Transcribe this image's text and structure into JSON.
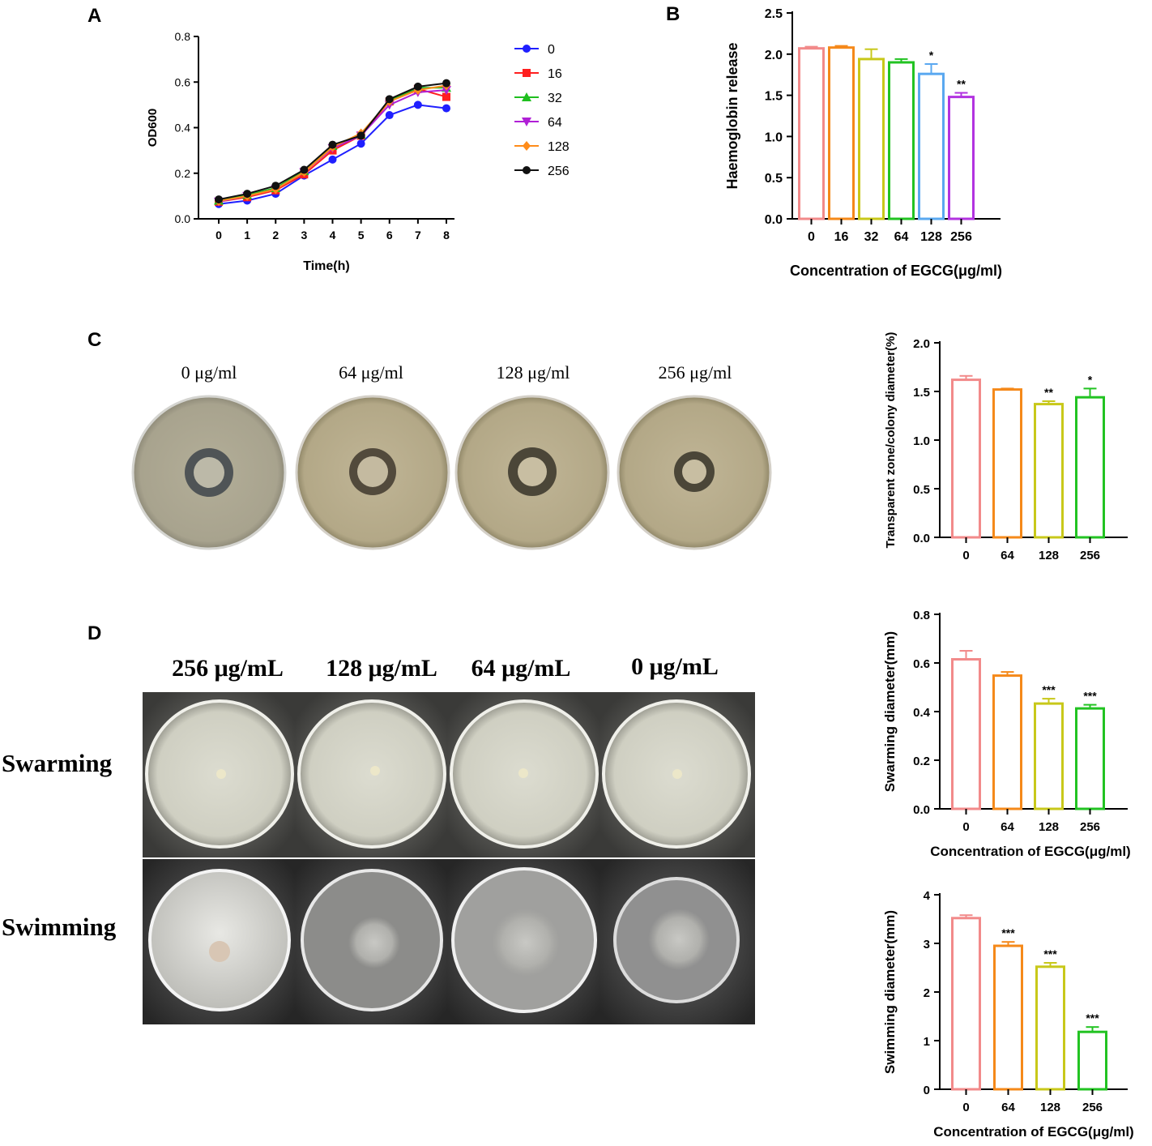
{
  "panels": {
    "a": "A",
    "b": "B",
    "c": "C",
    "d": "D"
  },
  "chart_data": [
    {
      "id": "A",
      "type": "line",
      "xlabel": "Time(h)",
      "ylabel": "OD600",
      "x": [
        0,
        1,
        2,
        3,
        4,
        5,
        6,
        7,
        8
      ],
      "xlim": [
        0,
        8
      ],
      "ylim": [
        0,
        0.8
      ],
      "yticks": [
        0.0,
        0.2,
        0.4,
        0.6,
        0.8
      ],
      "legend_position": "right",
      "series": [
        {
          "name": "0",
          "color": "#1f1fff",
          "marker": "circle",
          "values": [
            0.065,
            0.08,
            0.11,
            0.19,
            0.26,
            0.33,
            0.455,
            0.5,
            0.485
          ]
        },
        {
          "name": "16",
          "color": "#ff1f1f",
          "marker": "square",
          "values": [
            0.075,
            0.095,
            0.125,
            0.195,
            0.3,
            0.365,
            0.515,
            0.57,
            0.535
          ]
        },
        {
          "name": "32",
          "color": "#1fbf1f",
          "marker": "triangle",
          "values": [
            0.08,
            0.105,
            0.135,
            0.21,
            0.32,
            0.37,
            0.52,
            0.575,
            0.575
          ]
        },
        {
          "name": "64",
          "color": "#b01fd6",
          "marker": "tri-down",
          "values": [
            0.075,
            0.1,
            0.13,
            0.205,
            0.31,
            0.365,
            0.5,
            0.555,
            0.565
          ]
        },
        {
          "name": "128",
          "color": "#ff8c1a",
          "marker": "diamond",
          "values": [
            0.078,
            0.1,
            0.13,
            0.205,
            0.315,
            0.375,
            0.515,
            0.565,
            0.585
          ]
        },
        {
          "name": "256",
          "color": "#111111",
          "marker": "circle",
          "values": [
            0.085,
            0.11,
            0.145,
            0.215,
            0.325,
            0.365,
            0.525,
            0.58,
            0.595
          ]
        }
      ]
    },
    {
      "id": "B",
      "type": "bar",
      "xlabel": "Concentration of EGCG(μg/ml)",
      "ylabel": "Haemoglobin release",
      "categories": [
        "0",
        "16",
        "32",
        "64",
        "128",
        "256"
      ],
      "values": [
        2.07,
        2.08,
        1.94,
        1.9,
        1.76,
        1.48
      ],
      "errors": [
        0.02,
        0.02,
        0.12,
        0.04,
        0.12,
        0.05
      ],
      "significance": [
        "",
        "",
        "",
        "",
        "*",
        "**"
      ],
      "colors": [
        "#f28a8a",
        "#f5891a",
        "#c8c81a",
        "#22c322",
        "#5aa8f0",
        "#b233e0"
      ],
      "ylim": [
        0,
        2.5
      ],
      "yticks": [
        "0.0",
        "0.5",
        "1.0",
        "1.5",
        "2.0",
        "2.5"
      ]
    },
    {
      "id": "C",
      "type": "bar",
      "xlabel": "",
      "ylabel": "Transparent zone/colony diameter(%)",
      "categories": [
        "0",
        "64",
        "128",
        "256"
      ],
      "values": [
        1.62,
        1.52,
        1.37,
        1.44
      ],
      "errors": [
        0.04,
        0.01,
        0.03,
        0.09
      ],
      "significance": [
        "",
        "",
        "**",
        "*"
      ],
      "colors": [
        "#f28a8a",
        "#f5891a",
        "#c8c81a",
        "#22c322"
      ],
      "ylim": [
        0,
        2.0
      ],
      "yticks": [
        "0.0",
        "0.5",
        "1.0",
        "1.5",
        "2.0"
      ]
    },
    {
      "id": "D-swarming",
      "type": "bar",
      "xlabel": "Concentration of EGCG(μg/ml)",
      "ylabel": "Swarming diameter(mm)",
      "categories": [
        "0",
        "64",
        "128",
        "256"
      ],
      "values": [
        0.615,
        0.548,
        0.433,
        0.413
      ],
      "errors": [
        0.035,
        0.015,
        0.02,
        0.015
      ],
      "significance": [
        "",
        "",
        "***",
        "***"
      ],
      "colors": [
        "#f28a8a",
        "#f5891a",
        "#c8c81a",
        "#22c322"
      ],
      "ylim": [
        0,
        0.8
      ],
      "yticks": [
        "0.0",
        "0.2",
        "0.4",
        "0.6",
        "0.8"
      ]
    },
    {
      "id": "D-swimming",
      "type": "bar",
      "xlabel": "Concentration of EGCG(μg/ml)",
      "ylabel": "Swimming diameter(mm)",
      "categories": [
        "0",
        "64",
        "128",
        "256"
      ],
      "values": [
        3.52,
        2.95,
        2.52,
        1.18
      ],
      "errors": [
        0.06,
        0.08,
        0.08,
        0.1
      ],
      "significance": [
        "",
        "***",
        "***",
        "***"
      ],
      "colors": [
        "#f28a8a",
        "#f5891a",
        "#c8c81a",
        "#22c322"
      ],
      "ylim": [
        0,
        4
      ],
      "yticks": [
        "0",
        "1",
        "2",
        "3",
        "4"
      ]
    }
  ],
  "photos_c": {
    "labels": [
      "0 μg/ml",
      "64 μg/ml",
      "128 μg/ml",
      "256 μg/ml"
    ]
  },
  "photos_d": {
    "labels": [
      "256 μg/mL",
      "128 μg/mL",
      "64 μg/mL",
      "0 μg/mL"
    ],
    "rows": [
      "Swarming",
      "Swimming"
    ]
  }
}
